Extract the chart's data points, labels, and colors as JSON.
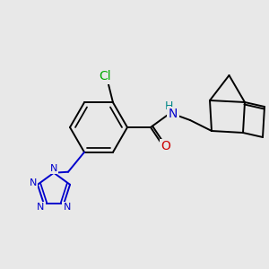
{
  "bg_color": "#e8e8e8",
  "bond_color": "#000000",
  "atom_colors": {
    "Cl": "#00aa00",
    "N": "#0000cc",
    "O": "#cc0000",
    "H": "#008888",
    "C": "#000000"
  },
  "figsize": [
    3.0,
    3.0
  ],
  "dpi": 100
}
